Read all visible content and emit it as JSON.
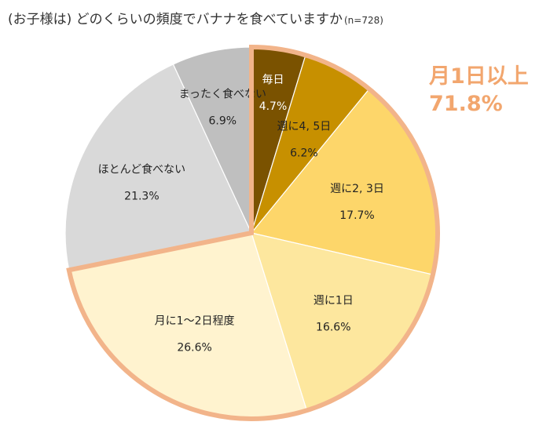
{
  "title": "(お子様は) どのくらいの頻度でバナナを食べていますか",
  "sample": "(n=728)",
  "chart_data": {
    "type": "pie",
    "title": "(お子様は) どのくらいの頻度でバナナを食べていますか",
    "sample": "(n=728)",
    "start_angle_deg": 0,
    "direction": "clockwise",
    "slices": [
      {
        "label": "毎日",
        "value": 4.7,
        "value_label": "4.7%",
        "color": "#7a5200"
      },
      {
        "label": "週に4, 5日",
        "value": 6.2,
        "value_label": "6.2%",
        "color": "#c79000"
      },
      {
        "label": "週に2, 3日",
        "value": 17.7,
        "value_label": "17.7%",
        "color": "#fdd66a"
      },
      {
        "label": "週に1日",
        "value": 16.6,
        "value_label": "16.6%",
        "color": "#fde79e"
      },
      {
        "label": "月に1～2日程度",
        "value": 26.6,
        "value_label": "26.6%",
        "color": "#fff3cf"
      },
      {
        "label": "ほとんど食べない",
        "value": 21.3,
        "value_label": "21.3%",
        "color": "#d9d9d9"
      },
      {
        "label": "まったく食べない",
        "value": 6.9,
        "value_label": "6.9%",
        "color": "#bfbfbf"
      }
    ],
    "group_highlight": {
      "label": "月1日以上",
      "value_label": "71.8%",
      "slice_indices": [
        0,
        1,
        2,
        3,
        4
      ],
      "border_color": "#f2b48a"
    }
  }
}
